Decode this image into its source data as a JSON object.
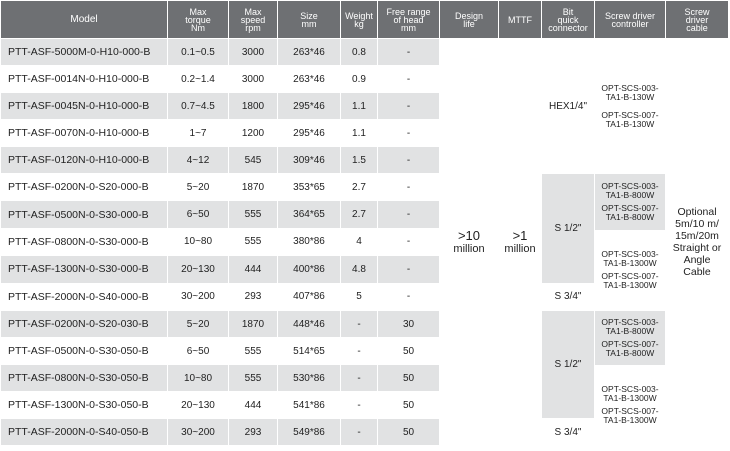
{
  "headers": {
    "model": "Model",
    "torque": [
      "Max",
      "torque",
      "Nm"
    ],
    "speed": [
      "Max",
      "speed",
      "rpm"
    ],
    "size": [
      "Size",
      "mm"
    ],
    "weight": [
      "Weight",
      "kg"
    ],
    "free": [
      "Free range",
      "of head",
      "mm"
    ],
    "design": [
      "Design",
      "life"
    ],
    "mttf": "MTTF",
    "bit": [
      "Bit",
      "quick",
      "connector"
    ],
    "controller": [
      "Screw driver",
      "controller"
    ],
    "cable": [
      "Screw",
      "driver",
      "cable"
    ]
  },
  "rows": [
    {
      "model": "PTT-ASF-5000M-0-H10-000-B",
      "torque": "0.1~0.5",
      "speed": "3000",
      "size": "263*46",
      "weight": "0.8",
      "free": "-"
    },
    {
      "model": "PTT-ASF-0014N-0-H10-000-B",
      "torque": "0.2~1.4",
      "speed": "3000",
      "size": "263*46",
      "weight": "0.9",
      "free": "-"
    },
    {
      "model": "PTT-ASF-0045N-0-H10-000-B",
      "torque": "0.7~4.5",
      "speed": "1800",
      "size": "295*46",
      "weight": "1.1",
      "free": "-"
    },
    {
      "model": "PTT-ASF-0070N-0-H10-000-B",
      "torque": "1~7",
      "speed": "1200",
      "size": "295*46",
      "weight": "1.1",
      "free": "-"
    },
    {
      "model": "PTT-ASF-0120N-0-H10-000-B",
      "torque": "4~12",
      "speed": "545",
      "size": "309*46",
      "weight": "1.5",
      "free": "-"
    },
    {
      "model": "PTT-ASF-0200N-0-S20-000-B",
      "torque": "5~20",
      "speed": "1870",
      "size": "353*65",
      "weight": "2.7",
      "free": "-"
    },
    {
      "model": "PTT-ASF-0500N-0-S30-000-B",
      "torque": "6~50",
      "speed": "555",
      "size": "364*65",
      "weight": "2.7",
      "free": "-"
    },
    {
      "model": "PTT-ASF-0800N-0-S30-000-B",
      "torque": "10~80",
      "speed": "555",
      "size": "380*86",
      "weight": "4",
      "free": "-"
    },
    {
      "model": "PTT-ASF-1300N-0-S30-000-B",
      "torque": "20~130",
      "speed": "444",
      "size": "400*86",
      "weight": "4.8",
      "free": "-"
    },
    {
      "model": "PTT-ASF-2000N-0-S40-000-B",
      "torque": "30~200",
      "speed": "293",
      "size": "407*86",
      "weight": "5",
      "free": "-"
    },
    {
      "model": "PTT-ASF-0200N-0-S20-030-B",
      "torque": "5~20",
      "speed": "1870",
      "size": "448*46",
      "weight": "-",
      "free": "30"
    },
    {
      "model": "PTT-ASF-0500N-0-S30-050-B",
      "torque": "6~50",
      "speed": "555",
      "size": "514*65",
      "weight": "-",
      "free": "50"
    },
    {
      "model": "PTT-ASF-0800N-0-S30-050-B",
      "torque": "10~80",
      "speed": "555",
      "size": "530*86",
      "weight": "-",
      "free": "50"
    },
    {
      "model": "PTT-ASF-1300N-0-S30-050-B",
      "torque": "20~130",
      "speed": "444",
      "size": "541*86",
      "weight": "-",
      "free": "50"
    },
    {
      "model": "PTT-ASF-2000N-0-S40-050-B",
      "torque": "30~200",
      "speed": "293",
      "size": "549*86",
      "weight": "-",
      "free": "50"
    }
  ],
  "design_life": [
    ">10",
    "million"
  ],
  "mttf": [
    ">1",
    "million"
  ],
  "bit": {
    "hex": "HEX1/4\"",
    "s12_a": "S 1/2\"",
    "s34_a": "S 3/4\"",
    "s12_b": "S 1/2\"",
    "s34_b": "S 3/4\""
  },
  "controller": {
    "h_1": [
      "OPT-SCS-003-",
      "TA1-B-130W"
    ],
    "h_2": [
      "OPT-SCS-007-",
      "TA1-B-130W"
    ],
    "s_1": [
      "OPT-SCS-003-",
      "TA1-B-800W"
    ],
    "s_2": [
      "OPT-SCS-007-",
      "TA1-B-800W"
    ],
    "s_3": [
      "OPT-SCS-003-",
      "TA1-B-1300W"
    ],
    "s_4": [
      "OPT-SCS-007-",
      "TA1-B-1300W"
    ],
    "f_1": [
      "OPT-SCS-003-",
      "TA1-B-800W"
    ],
    "f_2": [
      "OPT-SCS-007-",
      "TA1-B-800W"
    ],
    "f_3": [
      "OPT-SCS-003-",
      "TA1-B-1300W"
    ],
    "f_4": [
      "OPT-SCS-007-",
      "TA1-B-1300W"
    ]
  },
  "cable": [
    "Optional",
    "5m/10 m/",
    "15m/20m",
    "Straight or",
    "Angle",
    "Cable"
  ]
}
